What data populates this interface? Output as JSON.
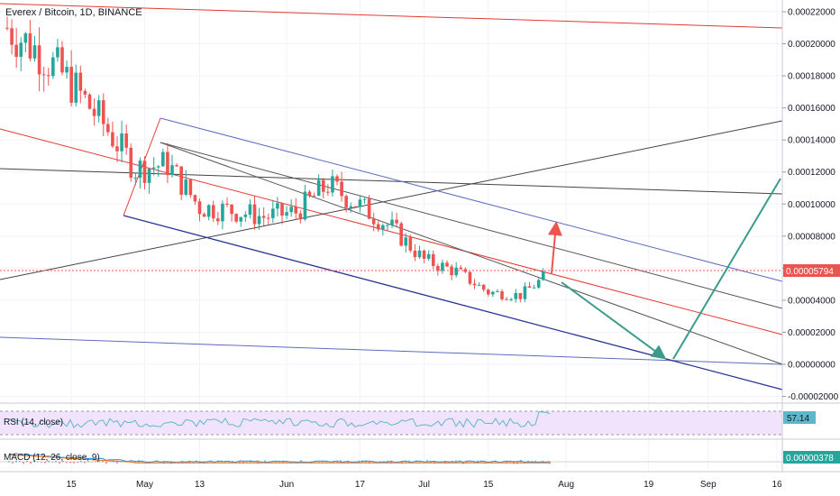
{
  "header": {
    "title": "Everex / Bitcoin, 1D, BINANCE"
  },
  "price_axis": {
    "ticks": [
      "0.00022000",
      "0.00020000",
      "0.00018000",
      "0.00016000",
      "0.00014000",
      "0.00012000",
      "0.00010000",
      "0.00008000",
      "0.00006000",
      "0.00004000",
      "0.00002000",
      "0.00000000",
      "-0.00002000"
    ],
    "current_price": "0.00005794"
  },
  "time_axis": {
    "ticks": [
      "15",
      "May",
      "13",
      "Jun",
      "17",
      "Jul",
      "15",
      "Aug",
      "19",
      "Sep",
      "16"
    ]
  },
  "rsi": {
    "label": "RSI (14, close)",
    "value": "57.14"
  },
  "macd": {
    "label": "MACD (12, 26, close, 9)",
    "value": "0.00000378"
  },
  "colors": {
    "up": "#26a69a",
    "down": "#ef5350",
    "regression_mid": "#e53935",
    "channel_top": "#5c6bc0",
    "channel_bottom": "#283593",
    "trend_grey": "#555555",
    "arrow_green": "#3a9b8b",
    "arrow_red": "#ef5350",
    "rsi_line": "#5fb8c9",
    "rsi_band": "#f1e3fb",
    "macd_line": "#2196f3",
    "signal_line": "#ff6d00"
  },
  "chart_data": {
    "type": "candlestick",
    "title": "Everex / Bitcoin, 1D, BINANCE",
    "y_range": [
      -2e-05,
      0.00022
    ],
    "x_range": [
      "2019-04-01",
      "2019-09-16"
    ],
    "anchor_points": [
      {
        "date": "2019-04-01",
        "close": 0.00021
      },
      {
        "date": "2019-04-08",
        "close": 0.000195
      },
      {
        "date": "2019-04-15",
        "close": 0.000175
      },
      {
        "date": "2019-04-22",
        "close": 0.00015
      },
      {
        "date": "2019-04-29",
        "close": 0.000122
      },
      {
        "date": "2019-05-06",
        "close": 0.000125
      },
      {
        "date": "2019-05-13",
        "close": 9.8e-05
      },
      {
        "date": "2019-05-20",
        "close": 9.6e-05
      },
      {
        "date": "2019-05-27",
        "close": 9.2e-05
      },
      {
        "date": "2019-06-03",
        "close": 9.5e-05
      },
      {
        "date": "2019-06-10",
        "close": 0.000112
      },
      {
        "date": "2019-06-17",
        "close": 9.9e-05
      },
      {
        "date": "2019-06-24",
        "close": 8.5e-05
      },
      {
        "date": "2019-07-01",
        "close": 6.5e-05
      },
      {
        "date": "2019-07-08",
        "close": 5.8e-05
      },
      {
        "date": "2019-07-15",
        "close": 4.5e-05
      },
      {
        "date": "2019-07-22",
        "close": 4.3e-05
      },
      {
        "date": "2019-07-29",
        "close": 5.794e-05
      }
    ],
    "last_value": 5.794e-05,
    "rsi_last": 57.14,
    "macd_last": 3.78e-06
  }
}
